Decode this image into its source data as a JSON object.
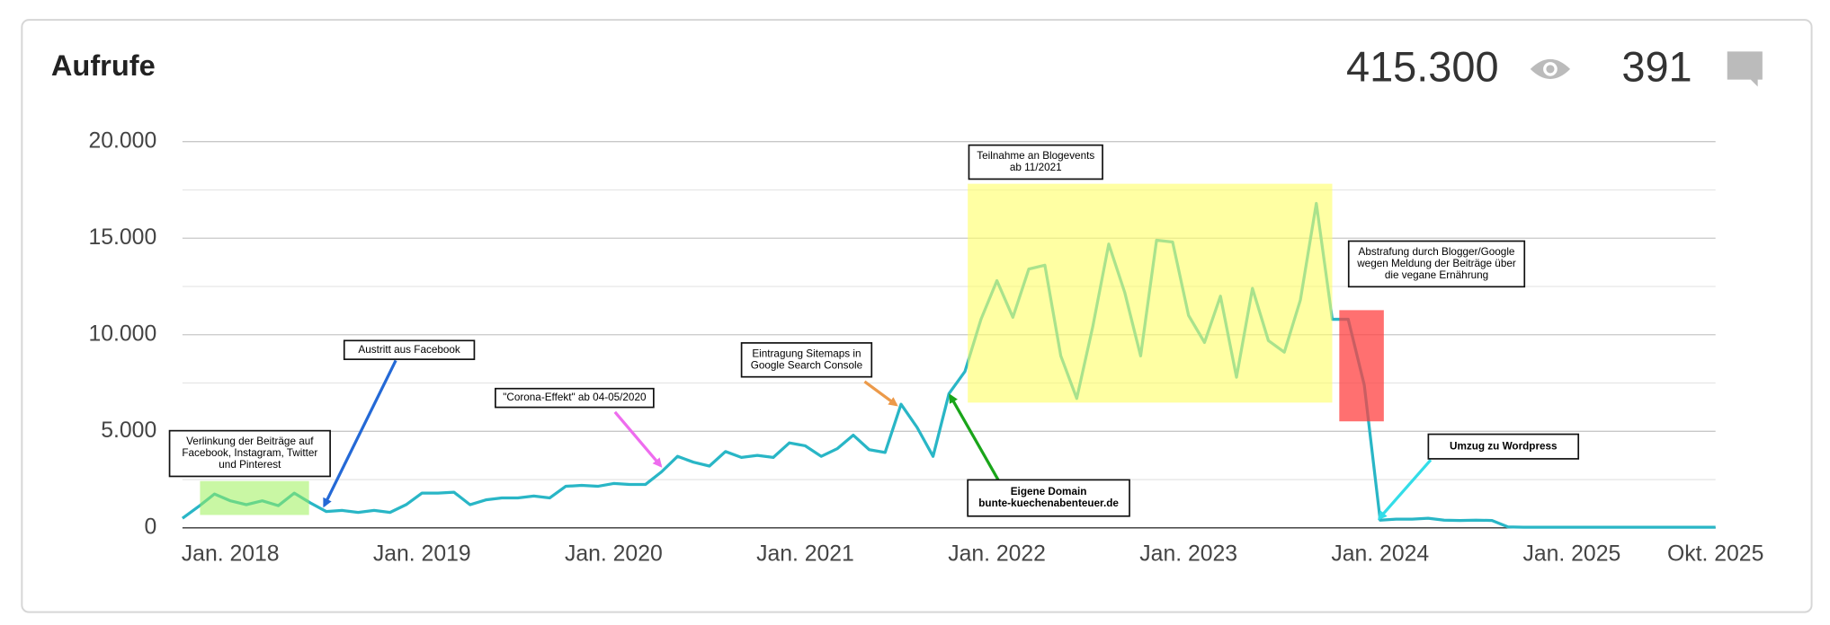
{
  "header": {
    "title": "Aufrufe",
    "views": "415.300",
    "comments": "391"
  },
  "chart_data": {
    "type": "line",
    "x": [
      "2017-10",
      "2017-11",
      "2017-12",
      "2018-01",
      "2018-02",
      "2018-03",
      "2018-04",
      "2018-05",
      "2018-06",
      "2018-07",
      "2018-08",
      "2018-09",
      "2018-10",
      "2018-11",
      "2018-12",
      "2019-01",
      "2019-02",
      "2019-03",
      "2019-04",
      "2019-05",
      "2019-06",
      "2019-07",
      "2019-08",
      "2019-09",
      "2019-10",
      "2019-11",
      "2019-12",
      "2020-01",
      "2020-02",
      "2020-03",
      "2020-04",
      "2020-05",
      "2020-06",
      "2020-07",
      "2020-08",
      "2020-09",
      "2020-10",
      "2020-11",
      "2020-12",
      "2021-01",
      "2021-02",
      "2021-03",
      "2021-04",
      "2021-05",
      "2021-06",
      "2021-07",
      "2021-08",
      "2021-09",
      "2021-10",
      "2021-11",
      "2021-12",
      "2022-01",
      "2022-02",
      "2022-03",
      "2022-04",
      "2022-05",
      "2022-06",
      "2022-07",
      "2022-08",
      "2022-09",
      "2022-10",
      "2022-11",
      "2022-12",
      "2023-01",
      "2023-02",
      "2023-03",
      "2023-04",
      "2023-05",
      "2023-06",
      "2023-07",
      "2023-08",
      "2023-09",
      "2023-10",
      "2023-11",
      "2023-12",
      "2024-01",
      "2024-02",
      "2024-03",
      "2024-04",
      "2024-05",
      "2024-06",
      "2024-07",
      "2024-08",
      "2024-09",
      "2024-10",
      "2024-11",
      "2024-12",
      "2025-01",
      "2025-02",
      "2025-03",
      "2025-04",
      "2025-05",
      "2025-06",
      "2025-07",
      "2025-08",
      "2025-09",
      "2025-10"
    ],
    "series": [
      {
        "name": "Aufrufe",
        "color": "#29b6c6",
        "values": [
          500,
          1100,
          1750,
          1400,
          1200,
          1400,
          1150,
          1800,
          1300,
          850,
          900,
          800,
          900,
          800,
          1200,
          1800,
          1800,
          1850,
          1200,
          1450,
          1550,
          1550,
          1650,
          1550,
          2150,
          2200,
          2150,
          2300,
          2250,
          2250,
          2900,
          3700,
          3400,
          3200,
          3950,
          3650,
          3750,
          3650,
          4400,
          4250,
          3700,
          4100,
          4800,
          4050,
          3900,
          6400,
          5200,
          3700,
          6950,
          8100,
          10800,
          12800,
          10900,
          13400,
          13600,
          8900,
          6700,
          10400,
          14700,
          12200,
          8900,
          14900,
          14800,
          11000,
          9600,
          12000,
          7800,
          12400,
          9700,
          9100,
          11800,
          16800,
          10800,
          10800,
          7400,
          400,
          450,
          450,
          500,
          400,
          380,
          400,
          380,
          50,
          30,
          30,
          30,
          30,
          30,
          30,
          30,
          30,
          30,
          30,
          30,
          30,
          30
        ]
      }
    ],
    "xlim": [
      "2017-10",
      "2025-10"
    ],
    "xticks": [
      {
        "value": "2018-01",
        "label": "Jan. 2018"
      },
      {
        "value": "2019-01",
        "label": "Jan. 2019"
      },
      {
        "value": "2020-01",
        "label": "Jan. 2020"
      },
      {
        "value": "2021-01",
        "label": "Jan. 2021"
      },
      {
        "value": "2022-01",
        "label": "Jan. 2022"
      },
      {
        "value": "2023-01",
        "label": "Jan. 2023"
      },
      {
        "value": "2024-01",
        "label": "Jan. 2024"
      },
      {
        "value": "2025-01",
        "label": "Jan. 2025"
      },
      {
        "value": "2025-10",
        "label": "Okt. 2025"
      }
    ],
    "ylim": [
      0,
      20000
    ],
    "yticks": [
      0,
      {
        "value": 5000,
        "label": "5.000"
      },
      {
        "value": 10000,
        "label": "10.000"
      },
      {
        "value": 15000,
        "label": "15.000"
      },
      {
        "value": 20000,
        "label": "20.000"
      }
    ],
    "yminor": [
      2500,
      7500,
      12500,
      17500
    ],
    "grid": true,
    "annotations": [
      {
        "text": [
          "Verlinkung der Beiträge auf",
          "Facebook, Instagram, Twitter",
          "und Pinterest"
        ],
        "bold": false
      },
      {
        "text": [
          "Austritt aus Facebook"
        ],
        "bold": false
      },
      {
        "text": [
          "\"Corona-Effekt\" ab 04-05/2020"
        ],
        "bold": false
      },
      {
        "text": [
          "Eintragung Sitemaps in",
          "Google Search Console"
        ],
        "bold": false
      },
      {
        "text": [
          "Eigene Domain",
          "bunte-kuechenabenteuer.de"
        ],
        "bold": true
      },
      {
        "text": [
          "Teilnahme an Blogevents",
          "ab 11/2021"
        ],
        "bold": false
      },
      {
        "text": [
          "Abstrafung durch Blogger/Google",
          "wegen Meldung der Beiträge über",
          "die vegane Ernährung"
        ],
        "bold": false
      },
      {
        "text": [
          "Umzug zu Wordpress"
        ],
        "bold": true
      }
    ]
  }
}
